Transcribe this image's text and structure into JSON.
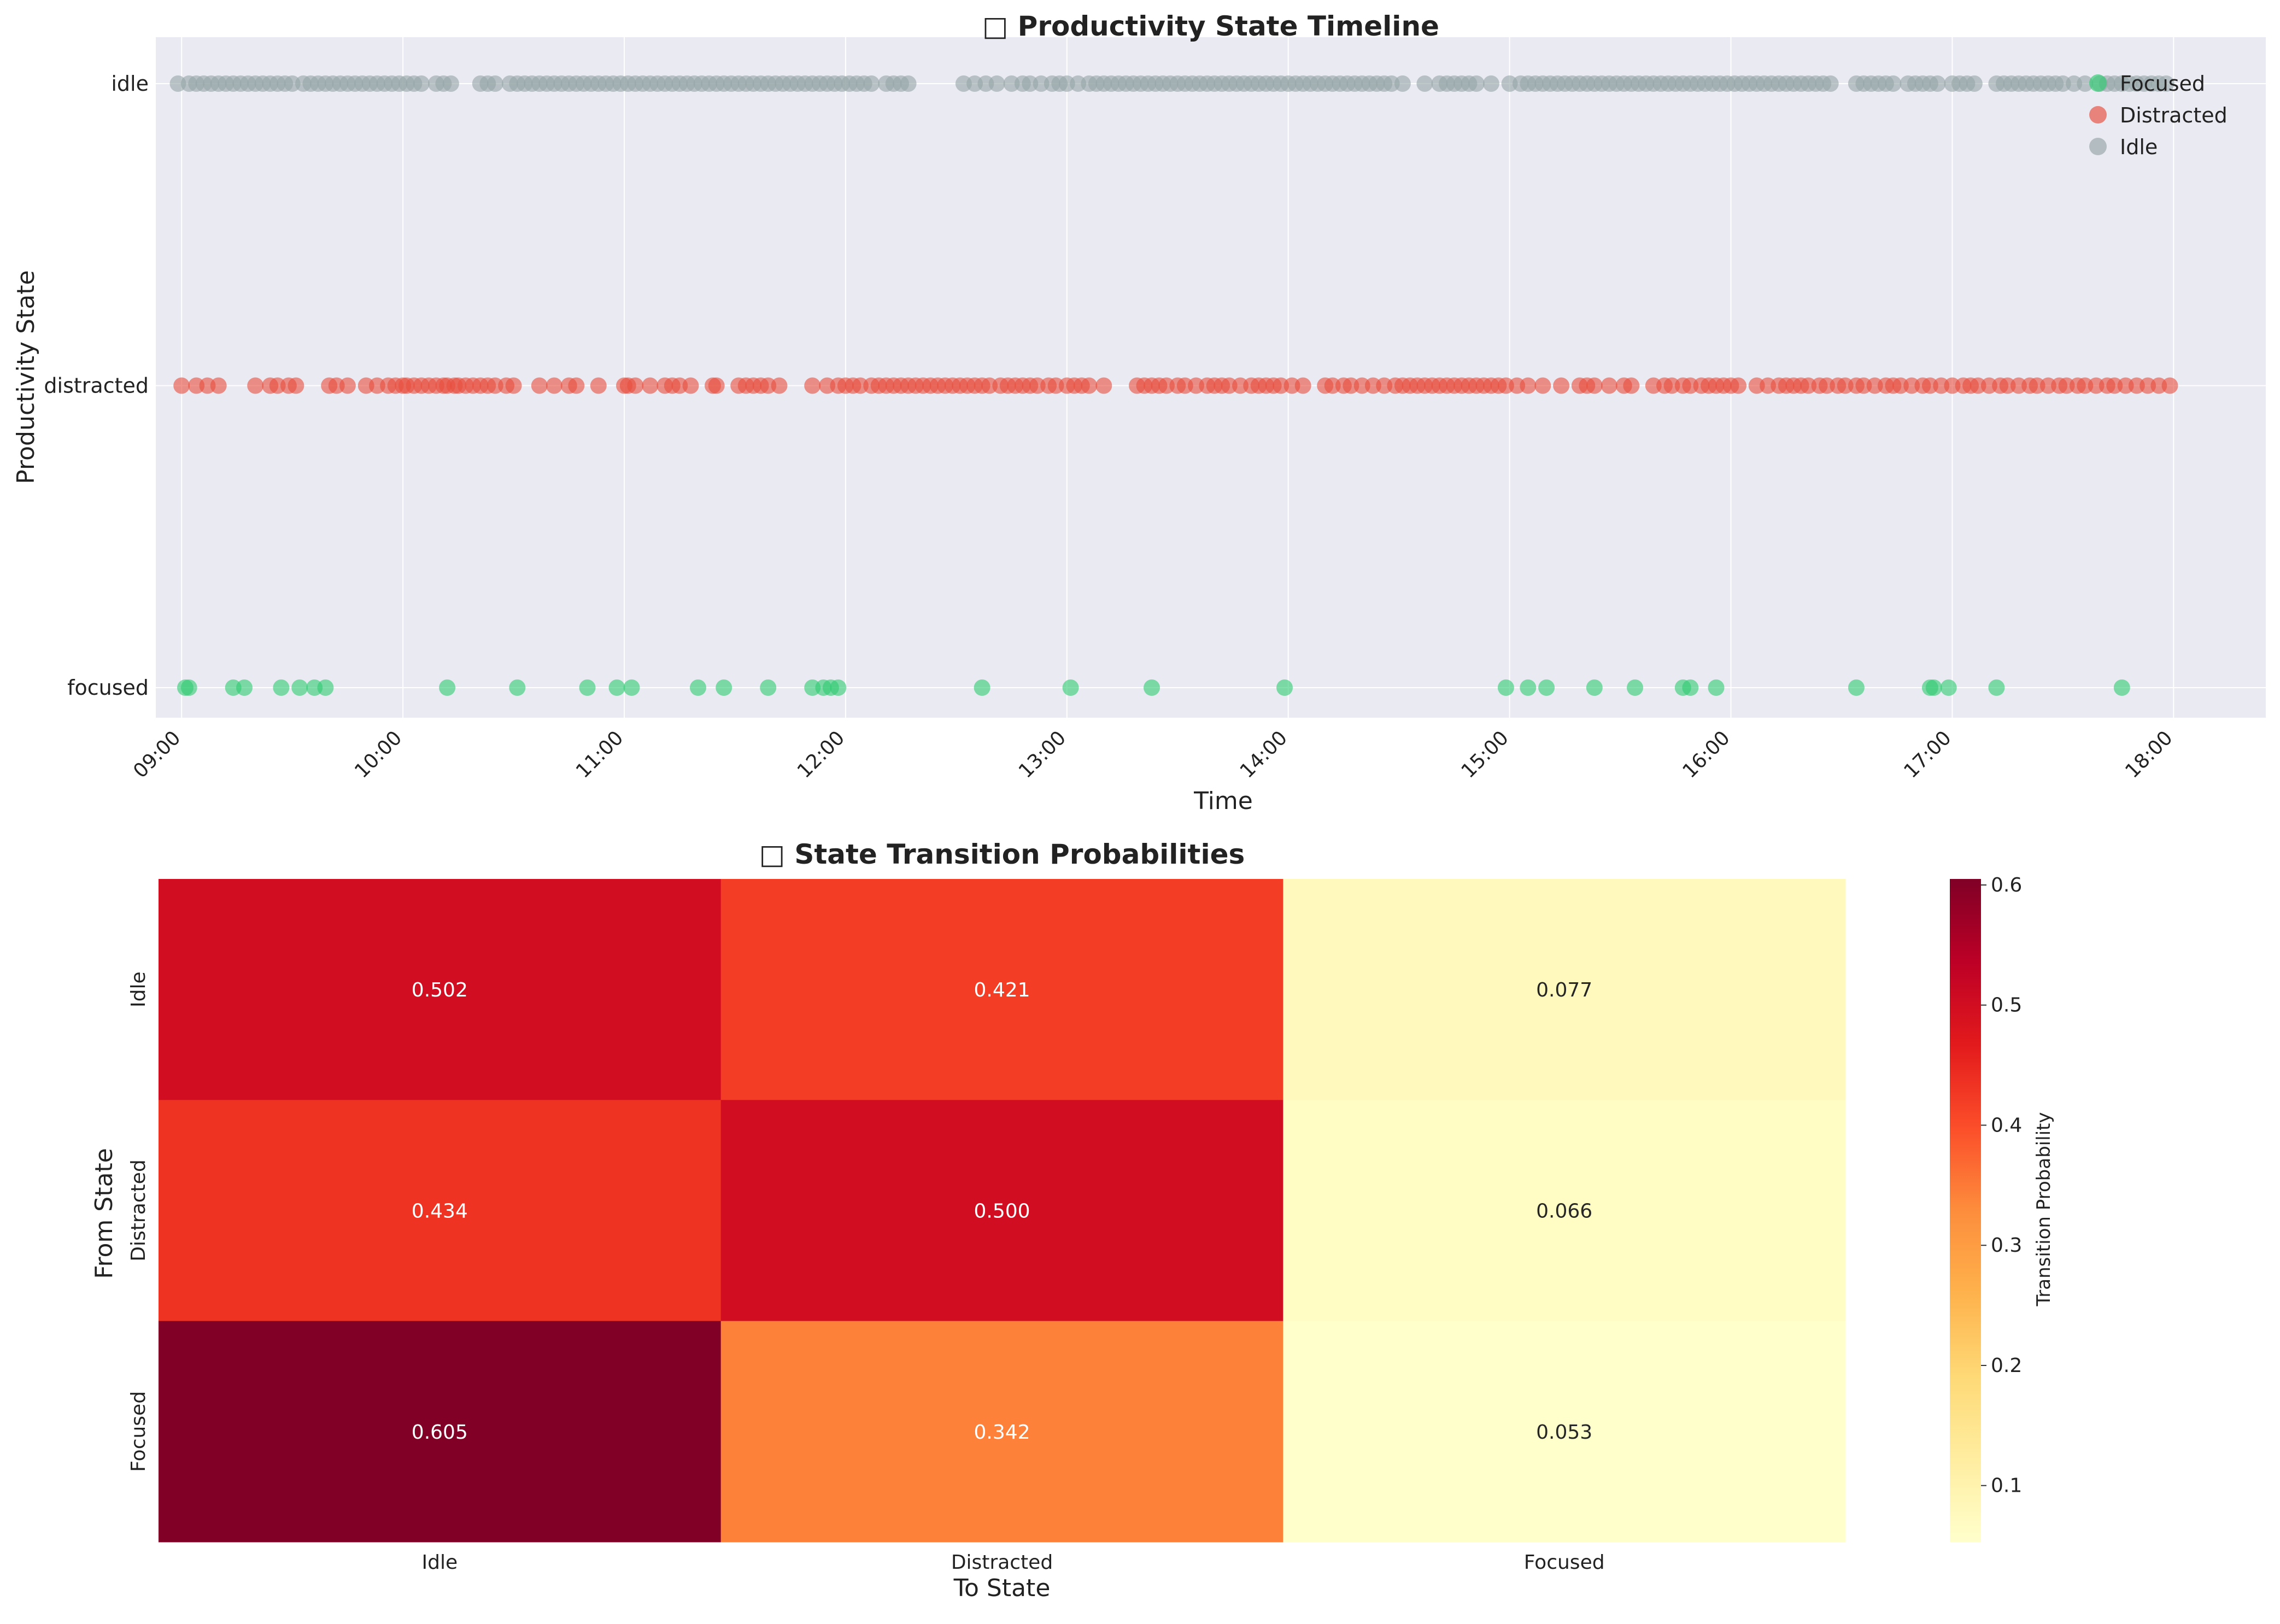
{
  "chart_data": [
    {
      "type": "scatter",
      "title": "□ Productivity State Timeline",
      "xlabel": "Time",
      "ylabel": "Productivity State",
      "x_ticks": [
        "09:00",
        "10:00",
        "11:00",
        "12:00",
        "13:00",
        "14:00",
        "15:00",
        "16:00",
        "17:00",
        "18:00"
      ],
      "y_categories": [
        "focused",
        "distracted",
        "idle"
      ],
      "xlim": [
        "08:53",
        "18:25"
      ],
      "grid": true,
      "legend_position": "top-right",
      "series": [
        {
          "name": "Focused",
          "color": "#2ecc71",
          "state": "focused",
          "x": [
            "09:01",
            "09:02",
            "09:14",
            "09:17",
            "09:27",
            "09:32",
            "09:36",
            "09:39",
            "10:12",
            "10:31",
            "10:50",
            "10:58",
            "11:02",
            "11:20",
            "11:27",
            "11:39",
            "11:51",
            "11:54",
            "11:56",
            "11:58",
            "12:37",
            "13:01",
            "13:23",
            "13:59",
            "14:59",
            "15:05",
            "15:10",
            "15:23",
            "15:34",
            "15:47",
            "15:49",
            "15:56",
            "16:34",
            "16:54",
            "16:55",
            "16:59",
            "17:12",
            "17:46"
          ]
        },
        {
          "name": "Distracted",
          "color": "#e74c3c",
          "state": "distracted",
          "x": [
            "09:00",
            "09:04",
            "09:07",
            "09:10",
            "09:20",
            "09:24",
            "09:26",
            "09:29",
            "09:31",
            "09:40",
            "09:42",
            "09:45",
            "09:50",
            "09:53",
            "09:56",
            "09:58",
            "10:00",
            "10:01",
            "10:03",
            "10:05",
            "10:07",
            "10:09",
            "10:11",
            "10:12",
            "10:14",
            "10:15",
            "10:17",
            "10:19",
            "10:21",
            "10:23",
            "10:25",
            "10:28",
            "10:30",
            "10:37",
            "10:41",
            "10:45",
            "10:47",
            "10:53",
            "11:00",
            "11:01",
            "11:03",
            "11:07",
            "11:11",
            "11:13",
            "11:15",
            "11:18",
            "11:24",
            "11:25",
            "11:31",
            "11:33",
            "11:35",
            "11:37",
            "11:39",
            "11:42",
            "11:51",
            "11:55",
            "11:58",
            "12:00",
            "12:02",
            "12:04",
            "12:07",
            "12:09",
            "12:11",
            "12:13",
            "12:15",
            "12:17",
            "12:19",
            "12:21",
            "12:23",
            "12:25",
            "12:27",
            "12:29",
            "12:31",
            "12:33",
            "12:35",
            "12:37",
            "12:39",
            "12:42",
            "12:44",
            "12:46",
            "12:48",
            "12:50",
            "12:52",
            "12:55",
            "12:57",
            "13:00",
            "13:02",
            "13:04",
            "13:06",
            "13:10",
            "13:19",
            "13:21",
            "13:23",
            "13:25",
            "13:27",
            "13:30",
            "13:32",
            "13:35",
            "13:38",
            "13:40",
            "13:42",
            "13:44",
            "13:47",
            "13:50",
            "13:52",
            "13:54",
            "13:56",
            "13:58",
            "14:01",
            "14:04",
            "14:10",
            "14:12",
            "14:15",
            "14:17",
            "14:20",
            "14:23",
            "14:26",
            "14:29",
            "14:31",
            "14:33",
            "14:35",
            "14:37",
            "14:39",
            "14:41",
            "14:43",
            "14:45",
            "14:47",
            "14:49",
            "14:51",
            "14:53",
            "14:55",
            "14:57",
            "14:59",
            "15:02",
            "15:05",
            "15:09",
            "15:14",
            "15:19",
            "15:21",
            "15:23",
            "15:27",
            "15:31",
            "15:33",
            "15:39",
            "15:42",
            "15:44",
            "15:47",
            "15:49",
            "15:52",
            "15:54",
            "15:56",
            "15:58",
            "16:00",
            "16:02",
            "16:07",
            "16:10",
            "16:13",
            "16:15",
            "16:17",
            "16:19",
            "16:21",
            "16:24",
            "16:26",
            "16:29",
            "16:31",
            "16:34",
            "16:36",
            "16:39",
            "16:42",
            "16:44",
            "16:46",
            "16:49",
            "16:52",
            "16:54",
            "16:57",
            "17:00",
            "17:03",
            "17:05",
            "17:07",
            "17:10",
            "17:13",
            "17:15",
            "17:18",
            "17:21",
            "17:23",
            "17:26",
            "17:29",
            "17:31",
            "17:34",
            "17:36",
            "17:39",
            "17:42",
            "17:44",
            "17:47",
            "17:50",
            "17:53",
            "17:56",
            "17:59"
          ]
        },
        {
          "name": "Idle",
          "color": "#95a5a6",
          "state": "idle",
          "x": [
            "08:59",
            "09:02",
            "09:04",
            "09:06",
            "09:08",
            "09:10",
            "09:12",
            "09:14",
            "09:16",
            "09:18",
            "09:20",
            "09:22",
            "09:24",
            "09:26",
            "09:28",
            "09:30",
            "09:33",
            "09:35",
            "09:37",
            "09:39",
            "09:41",
            "09:43",
            "09:45",
            "09:47",
            "09:49",
            "09:51",
            "09:53",
            "09:55",
            "09:57",
            "09:59",
            "10:01",
            "10:03",
            "10:05",
            "10:09",
            "10:11",
            "10:13",
            "10:21",
            "10:23",
            "10:25",
            "10:29",
            "10:31",
            "10:33",
            "10:35",
            "10:37",
            "10:39",
            "10:41",
            "10:43",
            "10:45",
            "10:47",
            "10:49",
            "10:51",
            "10:53",
            "10:55",
            "10:57",
            "10:59",
            "11:01",
            "11:03",
            "11:05",
            "11:07",
            "11:09",
            "11:11",
            "11:13",
            "11:15",
            "11:17",
            "11:19",
            "11:21",
            "11:23",
            "11:25",
            "11:27",
            "11:29",
            "11:31",
            "11:33",
            "11:35",
            "11:37",
            "11:39",
            "11:41",
            "11:43",
            "11:45",
            "11:47",
            "11:49",
            "11:51",
            "11:53",
            "11:55",
            "11:57",
            "11:59",
            "12:01",
            "12:03",
            "12:05",
            "12:07",
            "12:11",
            "12:13",
            "12:15",
            "12:17",
            "12:32",
            "12:35",
            "12:38",
            "12:41",
            "12:45",
            "12:48",
            "12:50",
            "12:53",
            "12:56",
            "12:58",
            "13:00",
            "13:03",
            "13:06",
            "13:08",
            "13:10",
            "13:12",
            "13:14",
            "13:16",
            "13:18",
            "13:20",
            "13:22",
            "13:24",
            "13:26",
            "13:28",
            "13:30",
            "13:32",
            "13:34",
            "13:36",
            "13:38",
            "13:40",
            "13:42",
            "13:44",
            "13:46",
            "13:48",
            "13:50",
            "13:52",
            "13:54",
            "13:56",
            "13:58",
            "14:00",
            "14:02",
            "14:04",
            "14:06",
            "14:08",
            "14:10",
            "14:12",
            "14:14",
            "14:16",
            "14:18",
            "14:20",
            "14:22",
            "14:24",
            "14:26",
            "14:28",
            "14:31",
            "14:37",
            "14:41",
            "14:43",
            "14:45",
            "14:47",
            "14:49",
            "14:51",
            "14:55",
            "15:00",
            "15:03",
            "15:05",
            "15:07",
            "15:09",
            "15:11",
            "15:13",
            "15:15",
            "15:17",
            "15:19",
            "15:21",
            "15:23",
            "15:25",
            "15:27",
            "15:29",
            "15:31",
            "15:33",
            "15:35",
            "15:37",
            "15:39",
            "15:41",
            "15:43",
            "15:45",
            "15:47",
            "15:49",
            "15:51",
            "15:53",
            "15:55",
            "15:57",
            "15:59",
            "16:01",
            "16:03",
            "16:05",
            "16:07",
            "16:09",
            "16:11",
            "16:13",
            "16:15",
            "16:17",
            "16:19",
            "16:21",
            "16:23",
            "16:25",
            "16:27",
            "16:34",
            "16:36",
            "16:38",
            "16:40",
            "16:42",
            "16:44",
            "16:48",
            "16:50",
            "16:52",
            "16:54",
            "16:56",
            "17:00",
            "17:02",
            "17:04",
            "17:06",
            "17:12",
            "17:14",
            "17:16",
            "17:18",
            "17:20",
            "17:22",
            "17:24",
            "17:26",
            "17:28",
            "17:30",
            "17:33",
            "17:36",
            "17:40",
            "17:42",
            "17:44",
            "17:46",
            "17:48",
            "17:50",
            "17:52",
            "17:54",
            "17:56",
            "17:58"
          ]
        }
      ]
    },
    {
      "type": "heatmap",
      "title": "□ State Transition Probabilities",
      "xlabel": "To State",
      "ylabel": "From State",
      "x_categories": [
        "Idle",
        "Distracted",
        "Focused"
      ],
      "y_categories": [
        "Idle",
        "Distracted",
        "Focused"
      ],
      "values": [
        [
          0.502,
          0.421,
          0.077
        ],
        [
          0.434,
          0.5,
          0.066
        ],
        [
          0.605,
          0.342,
          0.053
        ]
      ],
      "value_labels": [
        [
          "0.502",
          "0.421",
          "0.077"
        ],
        [
          "0.434",
          "0.500",
          "0.066"
        ],
        [
          "0.605",
          "0.342",
          "0.053"
        ]
      ],
      "colormap": "YlOrRd",
      "colorbar": {
        "label": "Transition Probability",
        "range": [
          0.053,
          0.605
        ],
        "ticks": [
          0.1,
          0.2,
          0.3,
          0.4,
          0.5,
          0.6
        ],
        "tick_labels": [
          "0.1",
          "0.2",
          "0.3",
          "0.4",
          "0.5",
          "0.6"
        ]
      }
    }
  ]
}
